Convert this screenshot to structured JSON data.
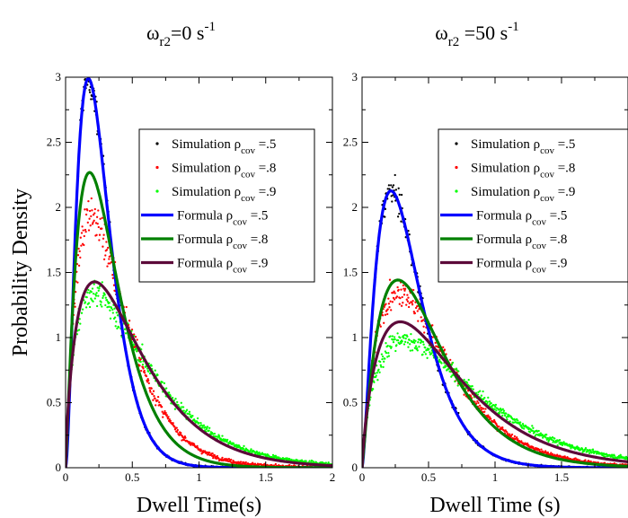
{
  "chart_data": [
    {
      "type": "line",
      "title": "ωr2=0 s-1",
      "title_parts": {
        "symbol": "ω",
        "subscript": "r2",
        "value": "=0 s",
        "superscript": "-1"
      },
      "xlabel": "Dwell Time(s)",
      "ylabel": "Probability Density",
      "xlim": [
        0,
        2
      ],
      "ylim": [
        0,
        3
      ],
      "x_ticks": [
        "0",
        "0.5",
        "1",
        "1.5",
        "2"
      ],
      "y_ticks": [
        "0",
        "0.5",
        "1",
        "1.5",
        "2",
        "2.5",
        "3"
      ],
      "grid": false,
      "legend_position": "top-right",
      "series": [
        {
          "name": "Simulation ρcov =.5",
          "name_base": "Simulation ρ",
          "name_sub": "cov",
          "name_tail": " =.5",
          "kind": "scatter",
          "color": "#000000",
          "k": 2.8,
          "theta": 0.095,
          "noise": 0.05
        },
        {
          "name": "Simulation ρcov =.8",
          "name_base": "Simulation ρ",
          "name_sub": "cov",
          "name_tail": " =.8",
          "kind": "scatter",
          "color": "#ff0000",
          "k": 2.0,
          "theta": 0.19,
          "noise": 0.09
        },
        {
          "name": "Simulation ρcov =.9",
          "name_base": "Simulation ρ",
          "name_sub": "cov",
          "name_tail": " =.9",
          "kind": "scatter",
          "color": "#00ff00",
          "k": 1.65,
          "theta": 0.33,
          "noise": 0.09
        },
        {
          "name": "Formula ρcov =.5",
          "name_base": "Formula ρ",
          "name_sub": "cov",
          "name_tail": " =.5",
          "kind": "line",
          "color": "#0000ff",
          "k": 2.8,
          "theta": 0.095
        },
        {
          "name": "Formula ρcov =.8",
          "name_base": "Formula ρ",
          "name_sub": "cov",
          "name_tail": " =.8",
          "kind": "line",
          "color": "#008000",
          "k": 2.2,
          "theta": 0.15
        },
        {
          "name": "Formula ρcov =.9",
          "name_base": "Formula ρ",
          "name_sub": "cov",
          "name_tail": " =.9",
          "kind": "line",
          "color": "#5c0a3a",
          "k": 1.75,
          "theta": 0.29
        }
      ]
    },
    {
      "type": "line",
      "title": "ωr2 =50 s-1",
      "title_parts": {
        "symbol": "ω",
        "subscript": "r2",
        "value": " =50 s",
        "superscript": "-1"
      },
      "xlabel": "Dwell Time (s)",
      "ylabel": "",
      "xlim": [
        0,
        2
      ],
      "ylim": [
        0,
        3
      ],
      "x_ticks": [
        "0",
        "0.5",
        "1",
        "1.5"
      ],
      "y_ticks": [
        "0",
        "0.5",
        "1",
        "1.5",
        "2",
        "2.5",
        "3"
      ],
      "grid": false,
      "legend_position": "top-right",
      "series": [
        {
          "name": "Simulation ρcov =.5",
          "name_base": "Simulation ρ",
          "name_sub": "cov",
          "name_tail": " =.5",
          "kind": "scatter",
          "color": "#000000",
          "k": 2.5,
          "theta": 0.145,
          "noise": 0.05
        },
        {
          "name": "Simulation ρcov =.8",
          "name_base": "Simulation ρ",
          "name_sub": "cov",
          "name_tail": " =.8",
          "kind": "scatter",
          "color": "#ff0000",
          "k": 2.0,
          "theta": 0.27,
          "noise": 0.08
        },
        {
          "name": "Simulation ρcov =.9",
          "name_base": "Simulation ρ",
          "name_sub": "cov",
          "name_tail": " =.9",
          "kind": "scatter",
          "color": "#00ff00",
          "k": 1.75,
          "theta": 0.42,
          "noise": 0.08
        },
        {
          "name": "Formula ρcov =.5",
          "name_base": "Formula ρ",
          "name_sub": "cov",
          "name_tail": " =.5",
          "kind": "line",
          "color": "#0000ff",
          "k": 2.5,
          "theta": 0.145
        },
        {
          "name": "Formula ρcov =.8",
          "name_base": "Formula ρ",
          "name_sub": "cov",
          "name_tail": " =.8",
          "kind": "line",
          "color": "#008000",
          "k": 2.1,
          "theta": 0.245
        },
        {
          "name": "Formula ρcov =.9",
          "name_base": "Formula ρ",
          "name_sub": "cov",
          "name_tail": " =.9",
          "kind": "line",
          "color": "#5c0a3a",
          "k": 1.8,
          "theta": 0.36
        }
      ]
    }
  ]
}
